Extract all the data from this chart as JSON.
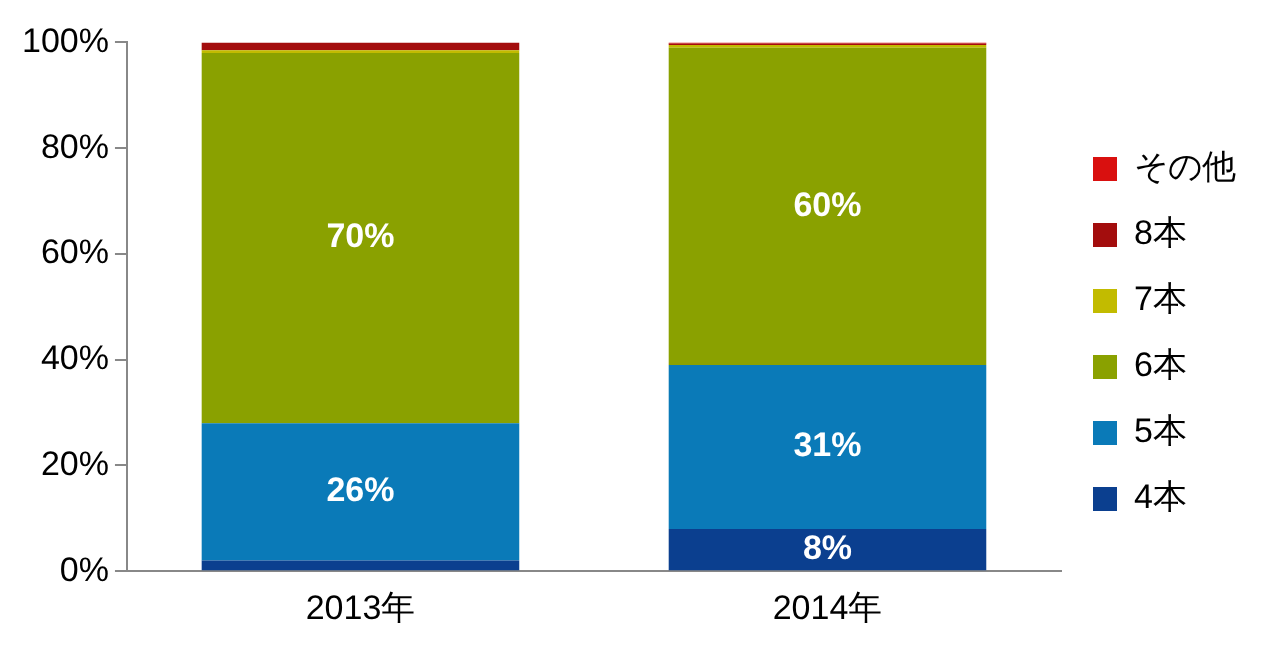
{
  "chart_data": {
    "type": "bar",
    "stacked": true,
    "categories": [
      "2013年",
      "2014年"
    ],
    "series": [
      {
        "name": "4本",
        "color": "#0b3f8f",
        "values": [
          2,
          8
        ],
        "value_labels": [
          null,
          "8%"
        ]
      },
      {
        "name": "5本",
        "color": "#0a7ab8",
        "values": [
          26,
          31
        ],
        "value_labels": [
          "26%",
          "31%"
        ]
      },
      {
        "name": "6本",
        "color": "#8aa100",
        "values": [
          70,
          60
        ],
        "value_labels": [
          "70%",
          "60%"
        ]
      },
      {
        "name": "7本",
        "color": "#c2bb00",
        "values": [
          0.5,
          0.5
        ],
        "value_labels": [
          null,
          null
        ]
      },
      {
        "name": "8本",
        "color": "#a30d0d",
        "values": [
          1.5,
          0.3
        ],
        "value_labels": [
          null,
          null
        ]
      },
      {
        "name": "その他",
        "color": "#d9100f",
        "values": [
          0,
          0.2
        ],
        "value_labels": [
          null,
          null
        ]
      }
    ],
    "ylim": [
      0,
      100
    ],
    "yticks": [
      {
        "value": 0,
        "label": "0%"
      },
      {
        "value": 20,
        "label": "20%"
      },
      {
        "value": 40,
        "label": "40%"
      },
      {
        "value": 60,
        "label": "60%"
      },
      {
        "value": 80,
        "label": "80%"
      },
      {
        "value": 100,
        "label": "100%"
      }
    ],
    "grid": false,
    "legend": "right"
  }
}
